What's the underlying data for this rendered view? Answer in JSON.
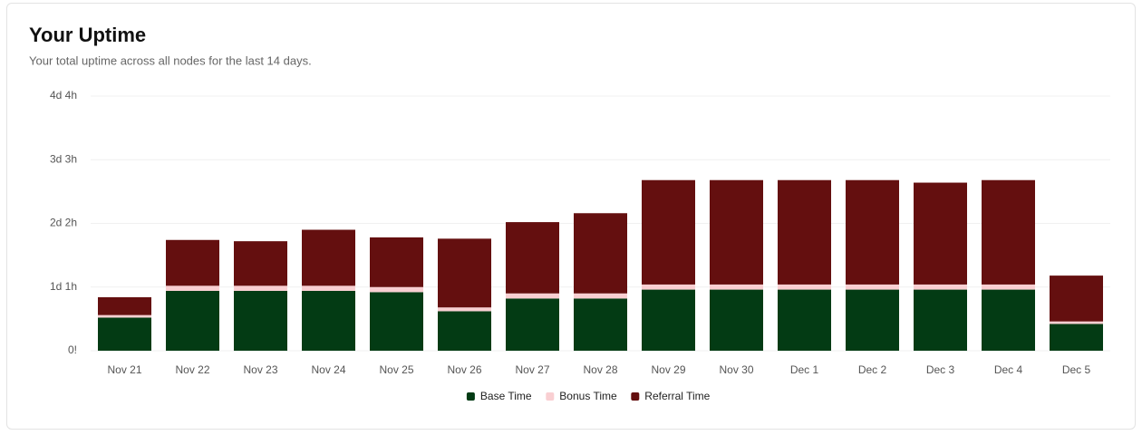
{
  "chart_data": {
    "type": "stacked-bar",
    "title": "Your Uptime",
    "subtitle": "Your total uptime across all nodes for the last 14 days.",
    "categories": [
      "Nov 21",
      "Nov 22",
      "Nov 23",
      "Nov 24",
      "Nov 25",
      "Nov 26",
      "Nov 27",
      "Nov 28",
      "Nov 29",
      "Nov 30",
      "Dec 1",
      "Dec 2",
      "Dec 3",
      "Dec 4",
      "Dec 5"
    ],
    "series": [
      {
        "name": "Base Time",
        "color": "#033b14",
        "values": [
          13,
          23.5,
          23.5,
          23.5,
          23,
          15.5,
          20.5,
          20.5,
          24,
          24,
          24,
          24,
          24,
          24,
          10.5
        ]
      },
      {
        "name": "Bonus Time",
        "color": "#f9cfd2",
        "values": [
          1,
          2,
          2,
          2,
          2,
          1.5,
          2,
          2,
          2,
          2,
          2,
          2,
          2,
          2,
          1
        ]
      },
      {
        "name": "Referral Time",
        "color": "#640f0f",
        "values": [
          7,
          18,
          17.5,
          22,
          19.5,
          27,
          28,
          31.5,
          41,
          41,
          41,
          41,
          40,
          41,
          18
        ]
      }
    ],
    "ylim": [
      0,
      100
    ],
    "yticks": [
      {
        "value": 0,
        "label": "0!"
      },
      {
        "value": 25,
        "label": "1d 1h"
      },
      {
        "value": 50,
        "label": "2d 2h"
      },
      {
        "value": 75,
        "label": "3d 3h"
      },
      {
        "value": 100,
        "label": "4d 4h"
      }
    ],
    "grid": true
  }
}
